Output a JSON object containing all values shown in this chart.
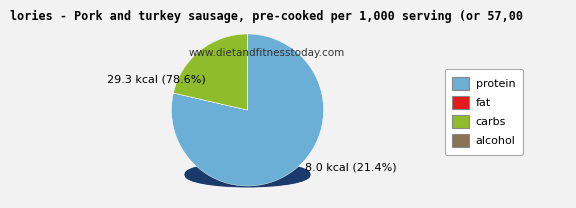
{
  "title_line1": "lories - Pork and turkey sausage, pre-cooked per 1,000 serving (or 57,00",
  "title_line2": "www.dietandfitnesstoday.com",
  "slices": [
    78.6,
    0.001,
    21.4,
    0.001
  ],
  "label_protein": "29.3 kcal (78.6%)",
  "label_carbs": "8.0 kcal (21.4%)",
  "colors": [
    "#6baed6",
    "#e41a1c",
    "#8fbc2a",
    "#8b7355"
  ],
  "shadow_color": "#1a3a6b",
  "legend_labels": [
    "protein",
    "fat",
    "carbs",
    "alcohol"
  ],
  "legend_colors": [
    "#6baed6",
    "#e41a1c",
    "#8fbc2a",
    "#8b7355"
  ],
  "startangle": 90,
  "background_color": "#f2f2f2",
  "title_fontsize": 8.5,
  "subtitle_fontsize": 7.5,
  "label_fontsize": 8,
  "legend_fontsize": 8
}
